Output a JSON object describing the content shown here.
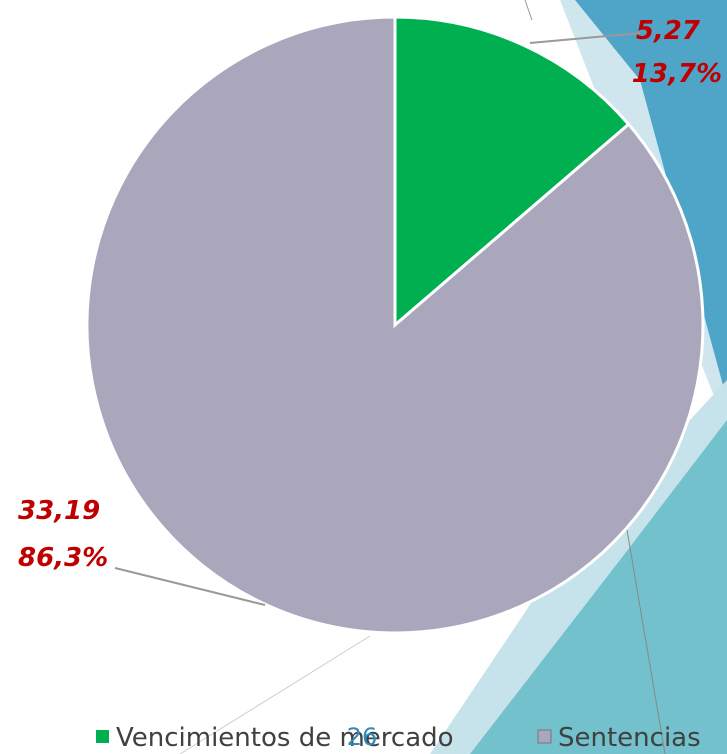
{
  "chart_data": {
    "type": "pie",
    "categories": [
      "Vencimientos de mercado",
      "Sentencias"
    ],
    "values": [
      5.27,
      33.19
    ],
    "value_labels": [
      "5,27",
      "33,19"
    ],
    "percentages": [
      13.7,
      86.3
    ],
    "percentage_labels": [
      "13,7%",
      "86,3%"
    ],
    "colors": [
      "#00b050",
      "#aaa6bb"
    ],
    "legend": "bottom"
  },
  "page_number": "26"
}
